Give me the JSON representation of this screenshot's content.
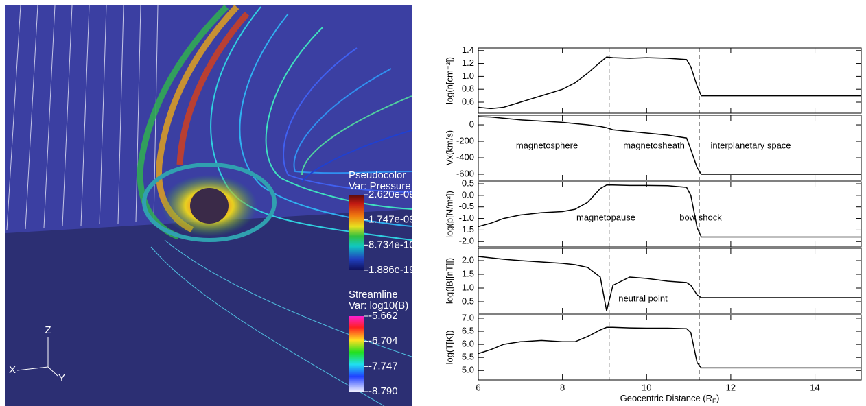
{
  "left_image": {
    "pseudocolor": {
      "title": "Pseudocolor",
      "var": "Var: Pressure",
      "labels": [
        "2.620e-09",
        "1.747e-09",
        "8.734e-10",
        "1.886e-19"
      ]
    },
    "streamline": {
      "title": "Streamline",
      "var": "Var: log10(B)",
      "labels": [
        "-5.662",
        "-6.704",
        "-7.747",
        "-8.790"
      ]
    },
    "axes": {
      "x": "X",
      "y": "Y",
      "z": "Z"
    }
  },
  "chart_data": {
    "type": "line",
    "xlabel": [
      "Geocentric Distance (R",
      "E",
      ")"
    ],
    "x": [
      6,
      6.3,
      6.6,
      7,
      7.5,
      8,
      8.3,
      8.6,
      8.9,
      9.05,
      9.2,
      9.6,
      10,
      10.5,
      10.95,
      11.05,
      11.2,
      11.3,
      12,
      13,
      14,
      15.1
    ],
    "xlim": [
      6,
      15.1
    ],
    "xticks": [
      6,
      8,
      10,
      12,
      14
    ],
    "boundaries": [
      9.11,
      11.25
    ],
    "color": "#000000",
    "panels": [
      {
        "ylabel": "log(n[cm⁻³])",
        "ylim": [
          0.43,
          1.44
        ],
        "yticks": [
          1.4,
          1.2,
          {
            "value": 1.0,
            "label": "1.0"
          },
          0.8,
          0.6
        ],
        "values": [
          0.52,
          0.5,
          0.52,
          0.6,
          0.7,
          0.8,
          0.9,
          1.05,
          1.22,
          1.3,
          1.29,
          1.28,
          1.29,
          1.28,
          1.26,
          1.15,
          0.85,
          0.7,
          0.7,
          0.7,
          0.7,
          0.7
        ]
      },
      {
        "ylabel": "Vx(km/s)",
        "ylim": [
          -675,
          117
        ],
        "yticks": [
          0,
          -200,
          -400,
          -600
        ],
        "values": [
          100,
          95,
          80,
          60,
          45,
          30,
          15,
          0,
          -20,
          -35,
          -60,
          -80,
          -100,
          -125,
          -160,
          -300,
          -520,
          -600,
          -600,
          -600,
          -600,
          -600
        ],
        "annotations": [
          "magnetosphere",
          "magnetosheath",
          "interplanetary space"
        ]
      },
      {
        "ylabel": "log(p[N/m²])",
        "ylim": [
          -2.23,
          0.59
        ],
        "yticks": [
          0.5,
          {
            "value": 0.0,
            "label": "0.0"
          },
          -0.5,
          {
            "value": -1.0,
            "label": "-1.0"
          },
          -1.5,
          {
            "value": -2.0,
            "label": "-2.0"
          }
        ],
        "values": [
          -1.35,
          -1.2,
          -1.0,
          -0.85,
          -0.75,
          -0.7,
          -0.6,
          -0.3,
          0.3,
          0.45,
          0.45,
          0.43,
          0.43,
          0.42,
          0.35,
          0.0,
          -1.4,
          -1.8,
          -1.8,
          -1.8,
          -1.8,
          -1.8
        ],
        "annotations": [
          "magnetopause",
          "bow shock"
        ]
      },
      {
        "ylabel": "log(|B|[nT]|)",
        "ylim": [
          0.075,
          2.45
        ],
        "yticks": [
          {
            "value": 2.0,
            "label": "2.0"
          },
          1.5,
          {
            "value": 1.0,
            "label": "1.0"
          },
          0.5
        ],
        "values": [
          2.15,
          2.1,
          2.05,
          2.0,
          1.95,
          1.9,
          1.85,
          1.75,
          1.4,
          0.17,
          1.1,
          1.4,
          1.35,
          1.25,
          1.2,
          1.1,
          0.75,
          0.65,
          0.65,
          0.65,
          0.65,
          0.65
        ],
        "annotations": [
          "neutral point"
        ]
      },
      {
        "ylabel": "log(T[K])",
        "ylim": [
          4.64,
          7.13
        ],
        "yticks": [
          {
            "value": 7.0,
            "label": "7.0"
          },
          6.5,
          {
            "value": 6.0,
            "label": "6.0"
          },
          5.5,
          {
            "value": 5.0,
            "label": "5.0"
          }
        ],
        "values": [
          5.65,
          5.8,
          6.0,
          6.1,
          6.15,
          6.1,
          6.1,
          6.3,
          6.55,
          6.65,
          6.65,
          6.63,
          6.62,
          6.62,
          6.6,
          6.45,
          5.3,
          5.1,
          5.1,
          5.1,
          5.1,
          5.1
        ]
      }
    ]
  }
}
